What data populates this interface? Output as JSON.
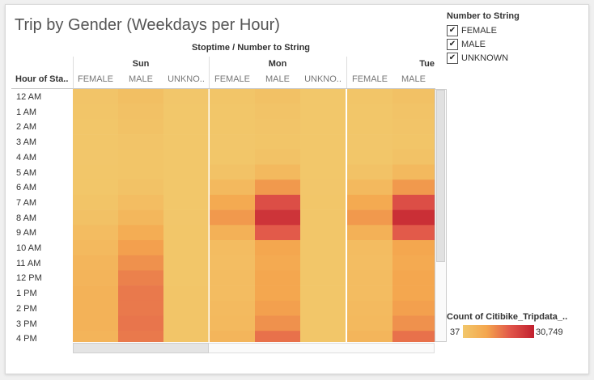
{
  "chart_data": {
    "type": "heatmap",
    "title": "Trip by Gender (Weekdays per Hour)",
    "column_header": "Stoptime / Number to String",
    "row_header": "Hour of Sta..",
    "days": [
      "Sun",
      "Mon",
      "Tue"
    ],
    "genders": [
      "FEMALE",
      "MALE",
      "UNKNO.."
    ],
    "columns": [
      {
        "day": "Sun",
        "label": "FEMALE"
      },
      {
        "day": "Sun",
        "label": "MALE"
      },
      {
        "day": "Sun",
        "label": "UNKNO.."
      },
      {
        "day": "Mon",
        "label": "FEMALE"
      },
      {
        "day": "Mon",
        "label": "MALE"
      },
      {
        "day": "Mon",
        "label": "UNKNO.."
      },
      {
        "day": "Tue",
        "label": "FEMALE"
      },
      {
        "day": "Tue",
        "label": "MALE"
      }
    ],
    "rows": [
      "12 AM",
      "1 AM",
      "2 AM",
      "3 AM",
      "4 AM",
      "5 AM",
      "6 AM",
      "7 AM",
      "8 AM",
      "9 AM",
      "10 AM",
      "11 AM",
      "12 PM",
      "1 PM",
      "2 PM",
      "3 PM",
      "4 PM"
    ],
    "values": [
      [
        900,
        2500,
        200,
        700,
        2000,
        150,
        700,
        2000
      ],
      [
        700,
        2000,
        150,
        400,
        1200,
        100,
        400,
        1200
      ],
      [
        500,
        1500,
        100,
        300,
        900,
        80,
        300,
        900
      ],
      [
        300,
        900,
        80,
        200,
        600,
        60,
        200,
        600
      ],
      [
        200,
        600,
        60,
        300,
        1500,
        60,
        300,
        1500
      ],
      [
        300,
        800,
        60,
        1500,
        4500,
        100,
        1500,
        4500
      ],
      [
        500,
        1500,
        100,
        4500,
        12000,
        200,
        4500,
        12000
      ],
      [
        1000,
        3000,
        150,
        9000,
        22000,
        300,
        9000,
        22000
      ],
      [
        2000,
        5000,
        200,
        12000,
        27000,
        400,
        12000,
        28000
      ],
      [
        3500,
        8000,
        300,
        7000,
        20000,
        300,
        7000,
        20000
      ],
      [
        4500,
        11000,
        400,
        3500,
        10000,
        250,
        3500,
        10000
      ],
      [
        5500,
        13000,
        500,
        3000,
        9000,
        250,
        3000,
        9000
      ],
      [
        6000,
        15000,
        500,
        3500,
        10000,
        250,
        3500,
        10000
      ],
      [
        6500,
        16000,
        600,
        3500,
        10000,
        250,
        3500,
        10000
      ],
      [
        6500,
        16000,
        600,
        4000,
        11000,
        300,
        4000,
        11000
      ],
      [
        6500,
        16500,
        600,
        4500,
        13000,
        300,
        4500,
        13000
      ],
      [
        6000,
        16000,
        600,
        5500,
        17000,
        300,
        5500,
        17000
      ]
    ],
    "color_min": 37,
    "color_max": 30749
  },
  "legend": {
    "title": "Number to String",
    "items": [
      {
        "label": "FEMALE",
        "checked": true
      },
      {
        "label": "MALE",
        "checked": true
      },
      {
        "label": "UNKNOWN",
        "checked": true
      }
    ]
  },
  "color_legend": {
    "title": "Count of Citibike_Tripdata_..",
    "min_label": "37",
    "max_label": "30,749",
    "colors": [
      "#f2c76a",
      "#f4a64e",
      "#e1564a",
      "#c1202f"
    ]
  },
  "check_glyph": "✔"
}
